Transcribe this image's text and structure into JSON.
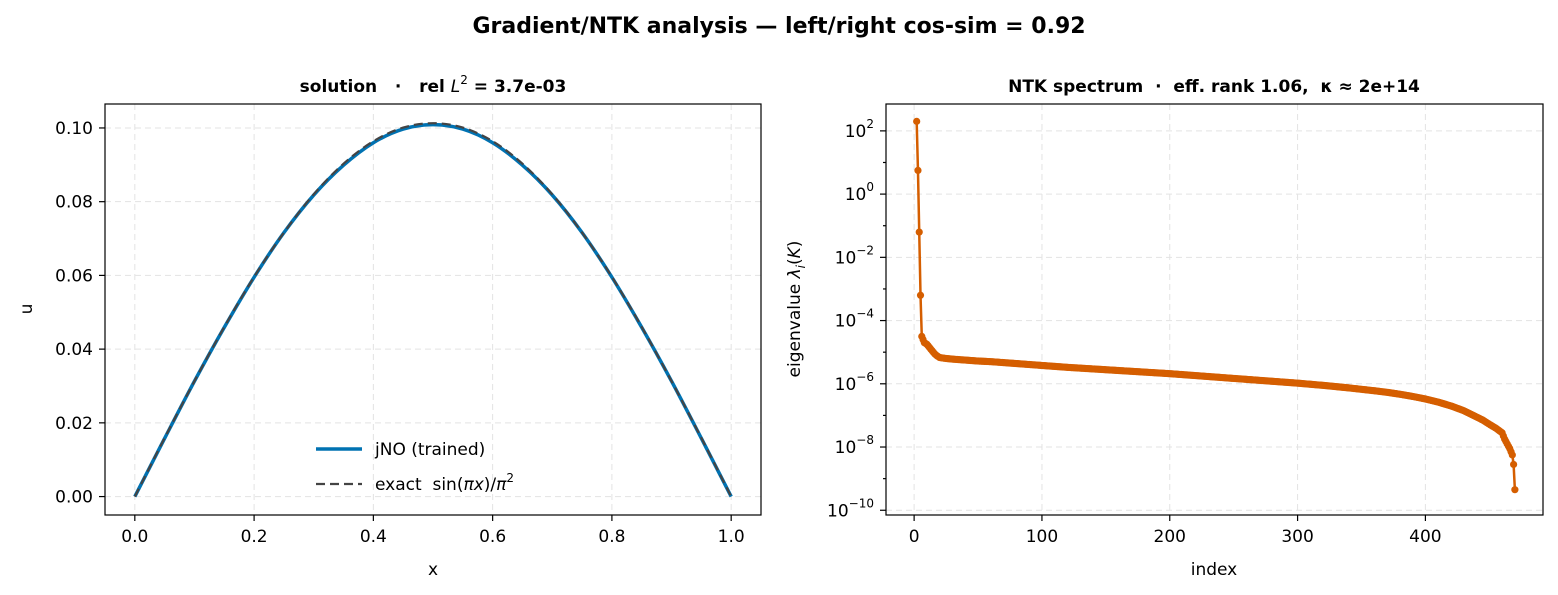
{
  "figure": {
    "suptitle": "Gradient/NTK analysis — left/right cos-sim = 0.92"
  },
  "chart_data": [
    {
      "type": "line",
      "title": "solution  ·  rel L² = 3.7e-03",
      "title_parts": {
        "prefix": "solution   ·   rel ",
        "var": "L",
        "sup": "2",
        "suffix": " = 3.7e-03"
      },
      "xlabel": "x",
      "ylabel": "u",
      "xlim": [
        -0.05,
        1.05
      ],
      "ylim": [
        -0.005,
        0.1065
      ],
      "xticks": [
        0.0,
        0.2,
        0.4,
        0.6,
        0.8,
        1.0
      ],
      "xtick_labels": [
        "0.0",
        "0.2",
        "0.4",
        "0.6",
        "0.8",
        "1.0"
      ],
      "yticks": [
        0.0,
        0.02,
        0.04,
        0.06,
        0.08,
        0.1
      ],
      "ytick_labels": [
        "0.00",
        "0.02",
        "0.04",
        "0.06",
        "0.08",
        "0.10"
      ],
      "grid": true,
      "legend_position": "lower center",
      "series": [
        {
          "name": "jNO (trained)",
          "color": "#0072b2",
          "style": "solid",
          "x": [
            0.0,
            0.05,
            0.1,
            0.15,
            0.2,
            0.25,
            0.3,
            0.35,
            0.4,
            0.45,
            0.5,
            0.55,
            0.6,
            0.65,
            0.7,
            0.75,
            0.8,
            0.85,
            0.9,
            0.95,
            1.0
          ],
          "y": [
            0.0,
            0.0158,
            0.0313,
            0.0459,
            0.0595,
            0.0716,
            0.0818,
            0.0899,
            0.096,
            0.0997,
            0.1009,
            0.0997,
            0.096,
            0.0899,
            0.0818,
            0.0716,
            0.0595,
            0.0459,
            0.0313,
            0.0158,
            0.0
          ]
        },
        {
          "name": "exact  sin(πx)/π²",
          "name_parts": {
            "prefix": "exact  sin(",
            "italic1": "πx",
            "mid": ")/",
            "italic2": "π",
            "sup": "2"
          },
          "color": "#444444",
          "style": "dashed",
          "x": [
            0.0,
            0.05,
            0.1,
            0.15,
            0.2,
            0.25,
            0.3,
            0.35,
            0.4,
            0.45,
            0.5,
            0.55,
            0.6,
            0.65,
            0.7,
            0.75,
            0.8,
            0.85,
            0.9,
            0.95,
            1.0
          ],
          "y": [
            0.0,
            0.0159,
            0.0313,
            0.046,
            0.0596,
            0.0716,
            0.082,
            0.0903,
            0.0964,
            0.1001,
            0.1013,
            0.1001,
            0.0964,
            0.0903,
            0.082,
            0.0716,
            0.0596,
            0.046,
            0.0313,
            0.0159,
            0.0
          ]
        }
      ]
    },
    {
      "type": "line",
      "title": "NTK spectrum  ·  eff. rank 1.06,  κ ≈ 2e+14",
      "xlabel": "index",
      "ylabel": "eigenvalue λi(K)",
      "ylabel_parts": {
        "prefix": "eigenvalue ",
        "var": "λ",
        "sub": "i",
        "mid": "(",
        "var2": "K",
        "suffix": ")"
      },
      "yscale": "log",
      "xlim": [
        -22,
        492
      ],
      "ylim_log10": [
        -10.15,
        2.85
      ],
      "xticks": [
        0,
        100,
        200,
        300,
        400
      ],
      "xtick_labels": [
        "0",
        "100",
        "200",
        "300",
        "400"
      ],
      "yticks_log10": [
        2,
        0,
        -2,
        -4,
        -6,
        -8,
        -10
      ],
      "ytick_labels": [
        {
          "base": "10",
          "exp": "2"
        },
        {
          "base": "10",
          "exp": "0"
        },
        {
          "base": "10",
          "exp": "−2"
        },
        {
          "base": "10",
          "exp": "−4"
        },
        {
          "base": "10",
          "exp": "−6"
        },
        {
          "base": "10",
          "exp": "−8"
        },
        {
          "base": "10",
          "exp": "−10"
        }
      ],
      "grid": true,
      "series": [
        {
          "name": "",
          "color": "#d55e00",
          "marker": "circle",
          "x": [
            2,
            3,
            4,
            5,
            6,
            8,
            10,
            12,
            14,
            16,
            18,
            20,
            25,
            30,
            40,
            50,
            60,
            70,
            80,
            90,
            100,
            120,
            140,
            160,
            180,
            200,
            220,
            240,
            260,
            280,
            300,
            320,
            340,
            360,
            370,
            380,
            390,
            400,
            410,
            420,
            430,
            440,
            445,
            450,
            455,
            460,
            462,
            464,
            466,
            468,
            469,
            470
          ],
          "y_log10": [
            2.3,
            0.75,
            -1.2,
            -3.2,
            -4.5,
            -4.7,
            -4.75,
            -4.85,
            -4.95,
            -5.05,
            -5.12,
            -5.17,
            -5.2,
            -5.22,
            -5.25,
            -5.28,
            -5.3,
            -5.33,
            -5.36,
            -5.39,
            -5.42,
            -5.48,
            -5.53,
            -5.58,
            -5.63,
            -5.68,
            -5.74,
            -5.8,
            -5.86,
            -5.92,
            -5.98,
            -6.05,
            -6.13,
            -6.22,
            -6.27,
            -6.33,
            -6.4,
            -6.48,
            -6.58,
            -6.7,
            -6.85,
            -7.05,
            -7.15,
            -7.28,
            -7.4,
            -7.55,
            -7.75,
            -7.9,
            -8.05,
            -8.25,
            -8.55,
            -9.35
          ]
        }
      ]
    }
  ]
}
